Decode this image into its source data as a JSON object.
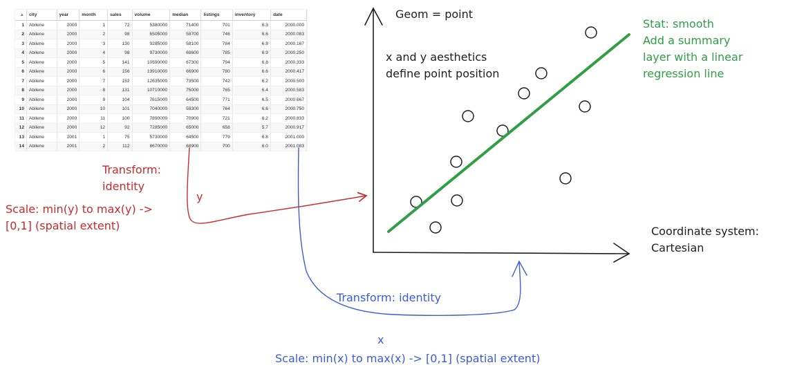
{
  "table": {
    "sort_indicator": "▲",
    "columns": [
      "city",
      "year",
      "month",
      "sales",
      "volume",
      "median",
      "listings",
      "inventory",
      "date"
    ],
    "rows": [
      [
        "1",
        "Abilene",
        "2000",
        "1",
        "72",
        "5380000",
        "71400",
        "701",
        "6.3",
        "2000.000"
      ],
      [
        "2",
        "Abilene",
        "2000",
        "2",
        "98",
        "6505000",
        "58700",
        "746",
        "6.6",
        "2000.083"
      ],
      [
        "3",
        "Abilene",
        "2000",
        "3",
        "130",
        "9285000",
        "58100",
        "784",
        "6.8",
        "2000.167"
      ],
      [
        "4",
        "Abilene",
        "2000",
        "4",
        "98",
        "9730000",
        "68600",
        "785",
        "6.9",
        "2000.250"
      ],
      [
        "5",
        "Abilene",
        "2000",
        "5",
        "141",
        "10590000",
        "67300",
        "794",
        "6.8",
        "2000.333"
      ],
      [
        "6",
        "Abilene",
        "2000",
        "6",
        "156",
        "13910000",
        "66900",
        "780",
        "6.6",
        "2000.417"
      ],
      [
        "7",
        "Abilene",
        "2000",
        "7",
        "152",
        "12635000",
        "73500",
        "742",
        "6.2",
        "2000.500"
      ],
      [
        "8",
        "Abilene",
        "2000",
        "8",
        "131",
        "10710000",
        "75000",
        "765",
        "6.4",
        "2000.583"
      ],
      [
        "9",
        "Abilene",
        "2000",
        "9",
        "104",
        "7615000",
        "64500",
        "771",
        "6.5",
        "2000.667"
      ],
      [
        "10",
        "Abilene",
        "2000",
        "10",
        "101",
        "7040000",
        "59300",
        "764",
        "6.6",
        "2000.750"
      ],
      [
        "11",
        "Abilene",
        "2000",
        "11",
        "100",
        "7890000",
        "70900",
        "721",
        "6.2",
        "2000.833"
      ],
      [
        "12",
        "Abilene",
        "2000",
        "12",
        "92",
        "7285000",
        "65000",
        "658",
        "5.7",
        "2000.917"
      ],
      [
        "13",
        "Abilene",
        "2001",
        "1",
        "75",
        "5730000",
        "64500",
        "779",
        "6.8",
        "2001.000"
      ],
      [
        "14",
        "Abilene",
        "2001",
        "2",
        "112",
        "8670000",
        "68900",
        "700",
        "6.0",
        "2001.083"
      ]
    ]
  },
  "labels": {
    "geom": "Geom = point",
    "aes_line1": "x and y aesthetics",
    "aes_line2": "define point position",
    "stat_line1": "Stat: smooth",
    "stat_line2": "Add a summary",
    "stat_line3": "layer with a linear",
    "stat_line4": "regression line",
    "coord_line1": "Coordinate system:",
    "coord_line2": "Cartesian",
    "transform_y_line1": "Transform:",
    "transform_y_line2": "identity",
    "y_aes": "y",
    "scale_y_line1": "Scale: min(y) to max(y) ->",
    "scale_y_line2": "[0,1] (spatial extent)",
    "transform_x": "Transform: identity",
    "x_aes": "x",
    "scale_x": "Scale: min(x) to max(x) -> [0,1] (spatial extent)"
  },
  "colors": {
    "ink": "#1e1e1e",
    "y_mapping": "#c92a2a",
    "x_mapping": "#3b5bdb",
    "stat": "#2f9e44"
  }
}
